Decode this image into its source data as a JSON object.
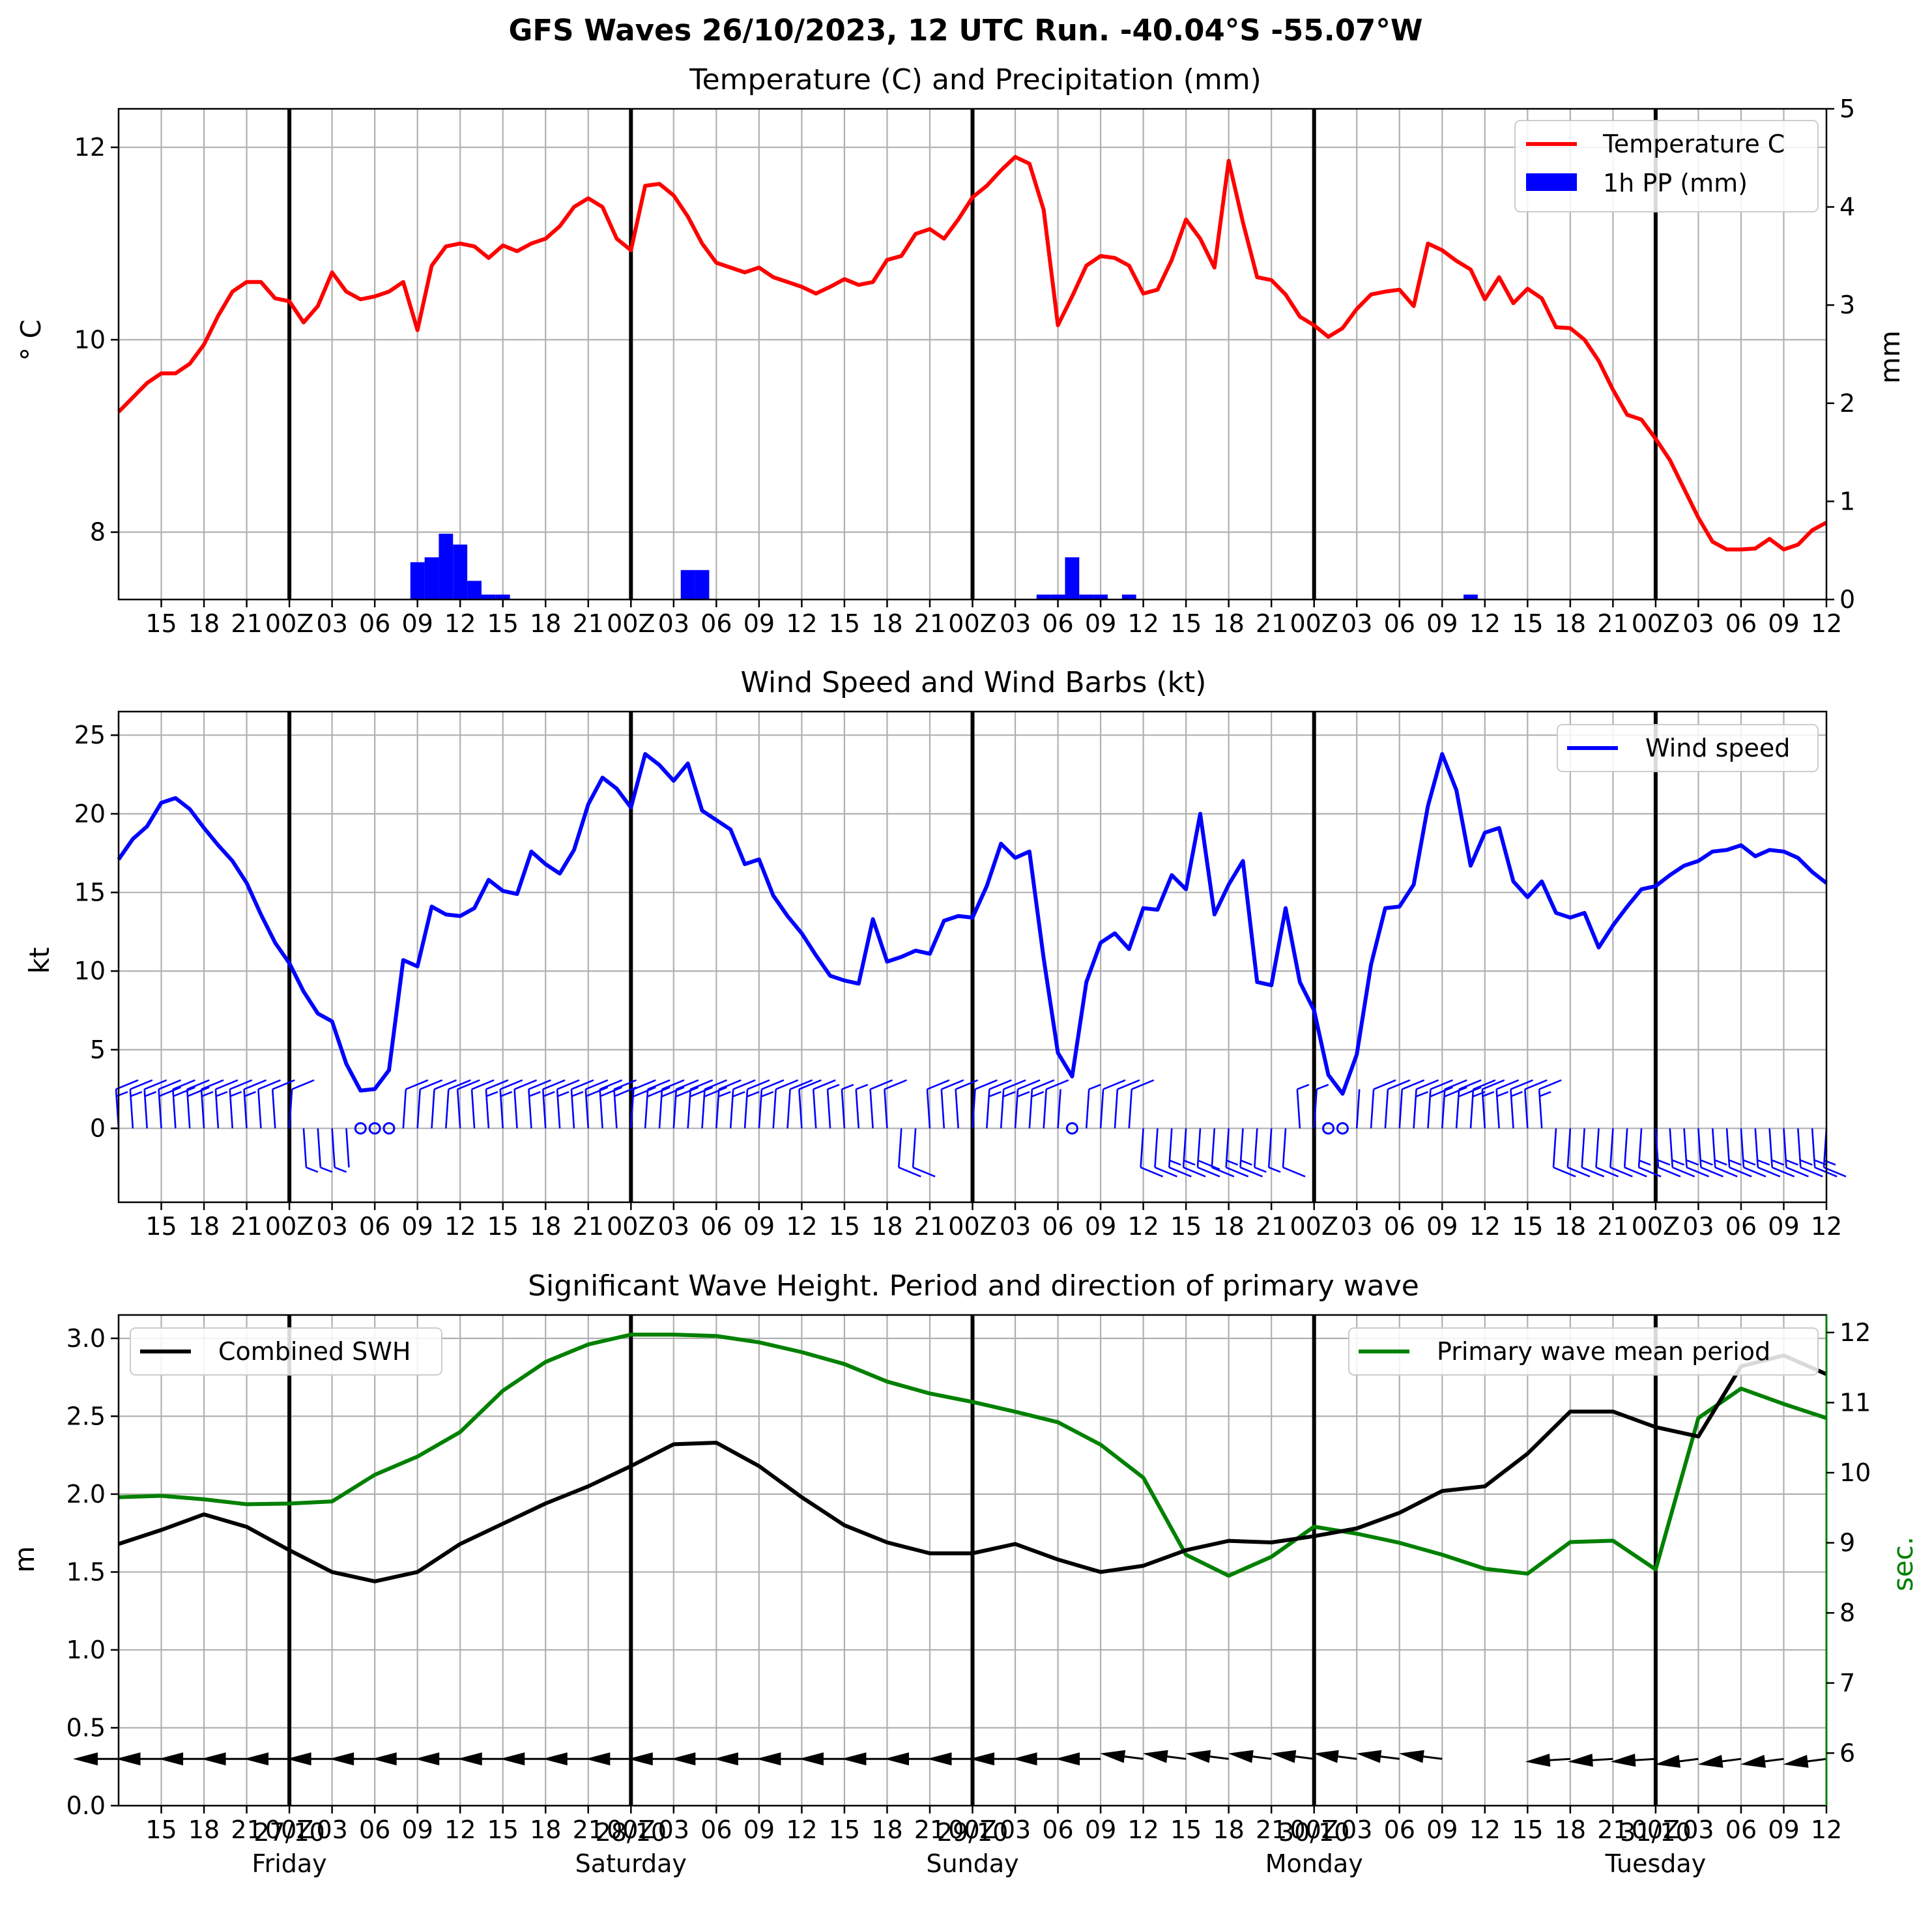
{
  "figure": {
    "suptitle": "GFS Waves 26/10/2023, 12 UTC Run. -40.04°S -55.07°W"
  },
  "time_axis": {
    "start_hour": 12,
    "end_hour": 132,
    "tick_labels": [
      "15",
      "18",
      "21",
      "00Z",
      "03",
      "06",
      "09",
      "12",
      "15",
      "18",
      "21",
      "00Z",
      "03",
      "06",
      "09",
      "12",
      "15",
      "18",
      "21",
      "00Z",
      "03",
      "06",
      "09",
      "12",
      "15",
      "18",
      "21",
      "00Z",
      "03",
      "06",
      "09",
      "12",
      "15",
      "18",
      "21",
      "00Z",
      "03",
      "06",
      "09",
      "12"
    ],
    "day_dates": [
      "27/10",
      "28/10",
      "29/10",
      "30/10",
      "31/10"
    ],
    "day_names": [
      "Friday",
      "Saturday",
      "Sunday",
      "Monday",
      "Tuesday"
    ]
  },
  "chart_data": [
    {
      "type": "line",
      "title": "Temperature (C) and Precipitation (mm)",
      "ylabel": "$^\\circ$C",
      "ylabel_display": "° C",
      "y2label": "mm",
      "ylim": [
        7.3,
        12.4
      ],
      "yticks": [
        8,
        10,
        12
      ],
      "y2lim": [
        0,
        5
      ],
      "y2ticks": [
        0,
        1,
        2,
        3,
        4,
        5
      ],
      "grid": true,
      "legend_position": "upper-right",
      "series": [
        {
          "name": "Temperature C",
          "color": "#ff0000",
          "kind": "line",
          "x": [
            12,
            13,
            14,
            15,
            16,
            17,
            18,
            19,
            20,
            21,
            22,
            23,
            24,
            25,
            26,
            27,
            28,
            29,
            30,
            31,
            32,
            33,
            34,
            35,
            36,
            37,
            38,
            39,
            40,
            41,
            42,
            43,
            44,
            45,
            46,
            47,
            48,
            49,
            50,
            51,
            52,
            53,
            54,
            55,
            56,
            57,
            58,
            59,
            60,
            61,
            62,
            63,
            64,
            65,
            66,
            67,
            68,
            69,
            70,
            71,
            72,
            73,
            74,
            75,
            76,
            77,
            78,
            79,
            80,
            81,
            82,
            83,
            84,
            85,
            86,
            87,
            88,
            89,
            90,
            91,
            92,
            93,
            94,
            95,
            96,
            97,
            98,
            99,
            100,
            101,
            102,
            103,
            104,
            105,
            106,
            107,
            108,
            109,
            110,
            111,
            112,
            113,
            114,
            115,
            116,
            117,
            118,
            119,
            120,
            121,
            122,
            123,
            124,
            125,
            126,
            127,
            128,
            129,
            130,
            131,
            132
          ],
          "values": [
            9.25,
            9.4,
            9.55,
            9.65,
            9.65,
            9.75,
            9.95,
            10.25,
            10.5,
            10.6,
            10.6,
            10.43,
            10.4,
            10.18,
            10.35,
            10.7,
            10.5,
            10.42,
            10.45,
            10.5,
            10.6,
            10.1,
            10.77,
            10.97,
            11.0,
            10.97,
            10.85,
            10.98,
            10.92,
            11.0,
            11.05,
            11.18,
            11.38,
            11.47,
            11.38,
            11.05,
            10.93,
            11.6,
            11.62,
            11.5,
            11.28,
            11.0,
            10.8,
            10.75,
            10.7,
            10.75,
            10.65,
            10.6,
            10.55,
            10.48,
            10.55,
            10.63,
            10.57,
            10.6,
            10.83,
            10.87,
            11.1,
            11.15,
            11.05,
            11.25,
            11.48,
            11.6,
            11.76,
            11.9,
            11.83,
            11.35,
            10.15,
            10.45,
            10.77,
            10.87,
            10.85,
            10.77,
            10.48,
            10.52,
            10.83,
            11.25,
            11.05,
            10.75,
            11.86,
            11.22,
            10.65,
            10.62,
            10.47,
            10.24,
            10.15,
            10.03,
            10.12,
            10.32,
            10.47,
            10.5,
            10.52,
            10.35,
            11.0,
            10.93,
            10.82,
            10.73,
            10.42,
            10.65,
            10.38,
            10.53,
            10.43,
            10.13,
            10.12,
            10.0,
            9.78,
            9.48,
            9.22,
            9.17,
            8.97,
            8.75,
            8.45,
            8.15,
            7.9,
            7.82,
            7.82,
            7.83,
            7.93,
            7.82,
            7.87,
            8.02,
            8.1
          ]
        },
        {
          "name": "1h PP (mm)",
          "color": "#0000ff",
          "kind": "bar",
          "axis": "right",
          "x": [
            33,
            34,
            35,
            36,
            37,
            38,
            39,
            52,
            53,
            77,
            78,
            79,
            80,
            81,
            83,
            107
          ],
          "values": [
            0.38,
            0.43,
            0.67,
            0.56,
            0.19,
            0.05,
            0.05,
            0.3,
            0.3,
            0.05,
            0.05,
            0.43,
            0.05,
            0.05,
            0.05,
            0.05
          ]
        }
      ]
    },
    {
      "type": "line",
      "title": "Wind Speed and Wind Barbs (kt)",
      "ylabel": "kt",
      "ylim": [
        -4.7,
        26.5
      ],
      "yticks": [
        0,
        5,
        10,
        15,
        20,
        25
      ],
      "grid": true,
      "legend_position": "upper-right",
      "series": [
        {
          "name": "Wind speed",
          "color": "#0000ff",
          "x": [
            12,
            13,
            14,
            15,
            16,
            17,
            18,
            19,
            20,
            21,
            22,
            23,
            24,
            25,
            26,
            27,
            28,
            29,
            30,
            31,
            32,
            33,
            34,
            35,
            36,
            37,
            38,
            39,
            40,
            41,
            42,
            43,
            44,
            45,
            46,
            47,
            48,
            49,
            50,
            51,
            52,
            53,
            54,
            55,
            56,
            57,
            58,
            59,
            60,
            61,
            62,
            63,
            64,
            65,
            66,
            67,
            68,
            69,
            70,
            71,
            72,
            73,
            74,
            75,
            76,
            77,
            78,
            79,
            80,
            81,
            82,
            83,
            84,
            85,
            86,
            87,
            88,
            89,
            90,
            91,
            92,
            93,
            94,
            95,
            96,
            97,
            98,
            99,
            100,
            101,
            102,
            103,
            104,
            105,
            106,
            107,
            108,
            109,
            110,
            111,
            112,
            113,
            114,
            115,
            116,
            117,
            118,
            119,
            120,
            121,
            122,
            123,
            124,
            125,
            126,
            127,
            128,
            129,
            130,
            131,
            132
          ],
          "values": [
            17.1,
            18.4,
            19.2,
            20.7,
            21.0,
            20.3,
            19.1,
            18.0,
            17.0,
            15.6,
            13.6,
            11.8,
            10.5,
            8.7,
            7.3,
            6.8,
            4.1,
            2.4,
            2.5,
            3.7,
            10.7,
            10.3,
            14.1,
            13.6,
            13.5,
            14.0,
            15.8,
            15.1,
            14.9,
            17.6,
            16.8,
            16.2,
            17.7,
            20.6,
            22.3,
            21.6,
            20.4,
            23.8,
            23.1,
            22.1,
            23.2,
            20.2,
            19.6,
            19.0,
            16.8,
            17.1,
            14.8,
            13.5,
            12.4,
            11.0,
            9.7,
            9.4,
            9.2,
            13.3,
            10.6,
            10.9,
            11.3,
            11.1,
            13.2,
            13.5,
            13.4,
            15.4,
            18.1,
            17.2,
            17.6,
            10.8,
            4.8,
            3.3,
            9.3,
            11.8,
            12.4,
            11.4,
            14.0,
            13.9,
            16.1,
            15.2,
            20.0,
            13.6,
            15.5,
            17.0,
            9.3,
            9.1,
            14.0,
            9.3,
            7.5,
            3.4,
            2.2,
            4.7,
            10.4,
            14.0,
            14.1,
            15.5,
            20.5,
            23.8,
            21.5,
            16.7,
            18.8,
            19.1,
            15.7,
            14.7,
            15.7,
            13.7,
            13.4,
            13.7,
            11.5,
            12.9,
            14.1,
            15.2,
            15.4,
            16.1,
            16.7,
            17.0,
            17.6,
            17.7,
            18.0,
            17.3,
            17.7,
            17.6,
            17.2,
            16.3,
            15.6
          ]
        }
      ]
    },
    {
      "type": "line",
      "title": "Significant Wave Height. Period and direction of primary wave",
      "ylabel": "m",
      "y2label": "sec.",
      "ylim": [
        0.0,
        3.15
      ],
      "yticks": [
        0.0,
        0.5,
        1.0,
        1.5,
        2.0,
        2.5,
        3.0
      ],
      "y2lim": [
        5.25,
        12.25
      ],
      "y2ticks": [
        6,
        7,
        8,
        9,
        10,
        11,
        12
      ],
      "grid": true,
      "series": [
        {
          "name": "Combined SWH",
          "color": "#000000",
          "legend_position": "upper-left",
          "x": [
            12,
            15,
            18,
            21,
            24,
            27,
            30,
            33,
            36,
            39,
            42,
            45,
            48,
            51,
            54,
            57,
            60,
            63,
            66,
            69,
            72,
            75,
            78,
            81,
            84,
            87,
            90,
            93,
            96,
            99,
            102,
            105,
            108,
            111,
            114,
            117,
            120,
            123,
            126,
            129,
            132
          ],
          "values": [
            1.68,
            1.77,
            1.87,
            1.79,
            1.64,
            1.5,
            1.44,
            1.5,
            1.68,
            1.81,
            1.94,
            2.05,
            2.18,
            2.32,
            2.33,
            2.18,
            1.98,
            1.8,
            1.69,
            1.62,
            1.62,
            1.68,
            1.58,
            1.5,
            1.54,
            1.64,
            1.7,
            1.69,
            1.73,
            1.78,
            1.88,
            2.02,
            2.05,
            2.26,
            2.53,
            2.53,
            2.43,
            2.37,
            2.82,
            2.89,
            2.77
          ]
        },
        {
          "name": "Primary wave mean period",
          "color": "#008000",
          "axis": "right",
          "legend_position": "upper-right",
          "x": [
            12,
            15,
            18,
            21,
            24,
            27,
            30,
            33,
            36,
            39,
            42,
            45,
            48,
            51,
            54,
            57,
            60,
            63,
            66,
            69,
            72,
            75,
            78,
            81,
            84,
            87,
            90,
            93,
            96,
            99,
            102,
            105,
            108,
            111,
            114,
            117,
            120,
            123,
            126,
            129,
            132
          ],
          "values": [
            9.65,
            9.67,
            9.62,
            9.55,
            9.56,
            9.59,
            9.97,
            10.23,
            10.58,
            11.17,
            11.58,
            11.83,
            11.97,
            11.97,
            11.95,
            11.86,
            11.72,
            11.55,
            11.3,
            11.13,
            11.01,
            10.87,
            10.72,
            10.4,
            9.93,
            8.83,
            8.53,
            8.8,
            9.23,
            9.13,
            9.0,
            8.83,
            8.63,
            8.56,
            9.01,
            9.03,
            8.62,
            10.78,
            11.2,
            10.98,
            10.78
          ]
        }
      ]
    }
  ],
  "colors": {
    "temperature": "#ff0000",
    "precip": "#0000ff",
    "wind": "#0000ff",
    "swh": "#000000",
    "period": "#008000",
    "grid": "#b0b0b0",
    "day_line": "#000000"
  }
}
